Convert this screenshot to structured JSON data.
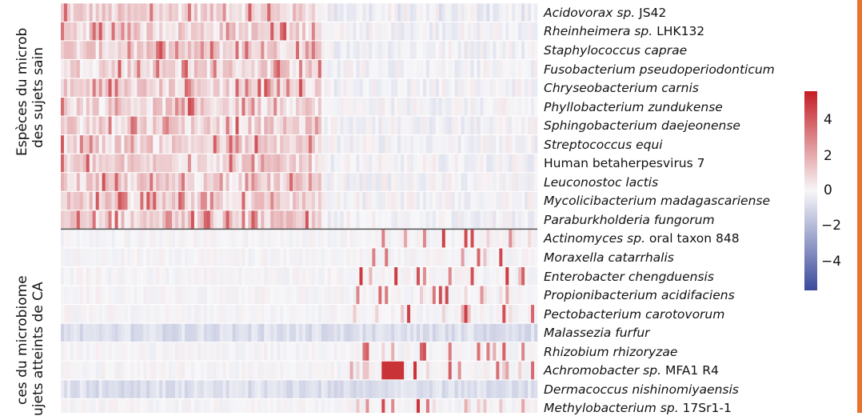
{
  "chart_data": {
    "type": "heatmap",
    "group_labels": [
      {
        "lines": [
          "Espèces du microb",
          "des sujets sain"
        ]
      },
      {
        "lines": [
          "ces du microbiome",
          "ujets atteints de CA"
        ]
      }
    ],
    "rows": [
      {
        "group": 0,
        "italic": "Acidovorax sp.",
        "normal": " JS42"
      },
      {
        "group": 0,
        "italic": "Rheinheimera sp.",
        "normal": " LHK132"
      },
      {
        "group": 0,
        "italic": "Staphylococcus caprae",
        "normal": ""
      },
      {
        "group": 0,
        "italic": "Fusobacterium pseudoperiodonticum",
        "normal": ""
      },
      {
        "group": 0,
        "italic": "Chryseobacterium carnis",
        "normal": ""
      },
      {
        "group": 0,
        "italic": "Phyllobacterium zundukense",
        "normal": ""
      },
      {
        "group": 0,
        "italic": "Sphingobacterium daejeonense",
        "normal": ""
      },
      {
        "group": 0,
        "italic": "Streptococcus equi",
        "normal": ""
      },
      {
        "group": 0,
        "italic": "",
        "normal": "Human betaherpesvirus 7"
      },
      {
        "group": 0,
        "italic": "Leuconostoc lactis",
        "normal": ""
      },
      {
        "group": 0,
        "italic": "Mycolicibacterium madagascariense",
        "normal": ""
      },
      {
        "group": 0,
        "italic": "Paraburkholderia fungorum",
        "normal": ""
      },
      {
        "group": 1,
        "italic": "Actinomyces sp.",
        "normal": " oral taxon 848"
      },
      {
        "group": 1,
        "italic": "Moraxella catarrhalis",
        "normal": ""
      },
      {
        "group": 1,
        "italic": "Enterobacter chengduensis",
        "normal": ""
      },
      {
        "group": 1,
        "italic": "Propionibacterium acidifaciens",
        "normal": ""
      },
      {
        "group": 1,
        "italic": "Pectobacterium carotovorum",
        "normal": ""
      },
      {
        "group": 1,
        "italic": "Malassezia furfur",
        "normal": ""
      },
      {
        "group": 1,
        "italic": "Rhizobium rhizoryzae",
        "normal": ""
      },
      {
        "group": 1,
        "italic": "Achromobacter sp.",
        "normal": " MFA1 R4"
      },
      {
        "group": 1,
        "italic": "Dermacoccus nishinomiyaensis",
        "normal": ""
      },
      {
        "group": 1,
        "italic": "Methylobacterium sp.",
        "normal": " 17Sr1-1"
      }
    ],
    "colorbar": {
      "ticks": [
        "4",
        "2",
        "0",
        "−2",
        "−4"
      ],
      "range": [
        -5.5,
        5.5
      ],
      "low_color": "#3a4a9c",
      "mid_color": "#f7f7f9",
      "high_color": "#c41e24"
    },
    "accent_color": "#e8732e"
  }
}
